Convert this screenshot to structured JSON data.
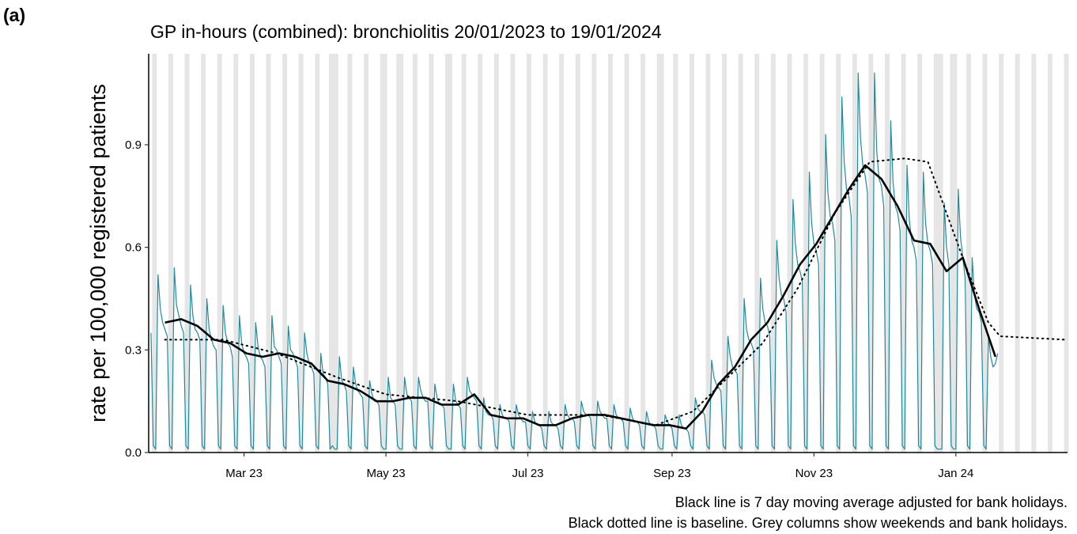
{
  "panel_label": "(a)",
  "chart_data": {
    "type": "line",
    "title": "GP in-hours (combined): bronchiolitis 20/01/2023 to 19/01/2024",
    "y_label": "rate per 100,000 registered patients",
    "notes": [
      "Black line is 7 day moving average adjusted for bank holidays.",
      "Black dotted line is baseline. Grey columns show weekends and bank holidays."
    ],
    "xlim": [
      "2023-01-19",
      "2024-02-18"
    ],
    "xticks": [
      {
        "value": "2023-03-01",
        "label": "Mar 23"
      },
      {
        "value": "2023-05-01",
        "label": "May 23"
      },
      {
        "value": "2023-07-01",
        "label": "Jul 23"
      },
      {
        "value": "2023-09-01",
        "label": "Sep 23"
      },
      {
        "value": "2023-11-01",
        "label": "Nov 23"
      },
      {
        "value": "2024-01-01",
        "label": "Jan 24"
      }
    ],
    "ylim": [
      0,
      1.166
    ],
    "yticks": [
      {
        "value": 0,
        "label": "0.0"
      },
      0.3,
      0.6,
      0.9
    ],
    "shade_weekends": true,
    "shade_color": "#e5e5e5",
    "bank_holidays": [
      "2023-04-07",
      "2023-04-10",
      "2023-05-01",
      "2023-05-08",
      "2023-05-29",
      "2023-08-28",
      "2023-12-25",
      "2023-12-26",
      "2024-01-01"
    ],
    "series": [
      {
        "style": "solid",
        "color": "#1f8a9e",
        "width": 1.2,
        "x": [
          "2023-01-20",
          "2023-01-21",
          "2023-01-22",
          "2023-01-23",
          "2023-01-24",
          "2023-01-25",
          "2023-01-26",
          "2023-01-27",
          "2023-01-28",
          "2023-01-29",
          "2023-01-30",
          "2023-01-31",
          "2023-02-01",
          "2023-02-02",
          "2023-02-03",
          "2023-02-04",
          "2023-02-05",
          "2023-02-06",
          "2023-02-07",
          "2023-02-08",
          "2023-02-09",
          "2023-02-10",
          "2023-02-11",
          "2023-02-12",
          "2023-02-13",
          "2023-02-14",
          "2023-02-15",
          "2023-02-16",
          "2023-02-17",
          "2023-02-18",
          "2023-02-19",
          "2023-02-20",
          "2023-02-21",
          "2023-02-22",
          "2023-02-23",
          "2023-02-24",
          "2023-02-25",
          "2023-02-26",
          "2023-02-27",
          "2023-02-28",
          "2023-03-01",
          "2023-03-02",
          "2023-03-03",
          "2023-03-04",
          "2023-03-05",
          "2023-03-06",
          "2023-03-07",
          "2023-03-08",
          "2023-03-09",
          "2023-03-10",
          "2023-03-11",
          "2023-03-12",
          "2023-03-13",
          "2023-03-14",
          "2023-03-15",
          "2023-03-16",
          "2023-03-17",
          "2023-03-18",
          "2023-03-19",
          "2023-03-20",
          "2023-03-21",
          "2023-03-22",
          "2023-03-23",
          "2023-03-24",
          "2023-03-25",
          "2023-03-26",
          "2023-03-27",
          "2023-03-28",
          "2023-03-29",
          "2023-03-30",
          "2023-03-31",
          "2023-04-01",
          "2023-04-02",
          "2023-04-03",
          "2023-04-04",
          "2023-04-05",
          "2023-04-06",
          "2023-04-07",
          "2023-04-08",
          "2023-04-09",
          "2023-04-10",
          "2023-04-11",
          "2023-04-12",
          "2023-04-13",
          "2023-04-14",
          "2023-04-15",
          "2023-04-16",
          "2023-04-17",
          "2023-04-18",
          "2023-04-19",
          "2023-04-20",
          "2023-04-21",
          "2023-04-22",
          "2023-04-23",
          "2023-04-24",
          "2023-04-25",
          "2023-04-26",
          "2023-04-27",
          "2023-04-28",
          "2023-04-29",
          "2023-04-30",
          "2023-05-01",
          "2023-05-02",
          "2023-05-03",
          "2023-05-04",
          "2023-05-05",
          "2023-05-06",
          "2023-05-07",
          "2023-05-08",
          "2023-05-09",
          "2023-05-10",
          "2023-05-11",
          "2023-05-12",
          "2023-05-13",
          "2023-05-14",
          "2023-05-15",
          "2023-05-16",
          "2023-05-17",
          "2023-05-18",
          "2023-05-19",
          "2023-05-20",
          "2023-05-21",
          "2023-05-22",
          "2023-05-23",
          "2023-05-24",
          "2023-05-25",
          "2023-05-26",
          "2023-05-27",
          "2023-05-28",
          "2023-05-29",
          "2023-05-30",
          "2023-05-31",
          "2023-06-01",
          "2023-06-02",
          "2023-06-03",
          "2023-06-04",
          "2023-06-05",
          "2023-06-06",
          "2023-06-07",
          "2023-06-08",
          "2023-06-09",
          "2023-06-10",
          "2023-06-11",
          "2023-06-12",
          "2023-06-13",
          "2023-06-14",
          "2023-06-15",
          "2023-06-16",
          "2023-06-17",
          "2023-06-18",
          "2023-06-19",
          "2023-06-20",
          "2023-06-21",
          "2023-06-22",
          "2023-06-23",
          "2023-06-24",
          "2023-06-25",
          "2023-06-26",
          "2023-06-27",
          "2023-06-28",
          "2023-06-29",
          "2023-06-30",
          "2023-07-01",
          "2023-07-02",
          "2023-07-03",
          "2023-07-04",
          "2023-07-05",
          "2023-07-06",
          "2023-07-07",
          "2023-07-08",
          "2023-07-09",
          "2023-07-10",
          "2023-07-11",
          "2023-07-12",
          "2023-07-13",
          "2023-07-14",
          "2023-07-15",
          "2023-07-16",
          "2023-07-17",
          "2023-07-18",
          "2023-07-19",
          "2023-07-20",
          "2023-07-21",
          "2023-07-22",
          "2023-07-23",
          "2023-07-24",
          "2023-07-25",
          "2023-07-26",
          "2023-07-27",
          "2023-07-28",
          "2023-07-29",
          "2023-07-30",
          "2023-07-31",
          "2023-08-01",
          "2023-08-02",
          "2023-08-03",
          "2023-08-04",
          "2023-08-05",
          "2023-08-06",
          "2023-08-07",
          "2023-08-08",
          "2023-08-09",
          "2023-08-10",
          "2023-08-11",
          "2023-08-12",
          "2023-08-13",
          "2023-08-14",
          "2023-08-15",
          "2023-08-16",
          "2023-08-17",
          "2023-08-18",
          "2023-08-19",
          "2023-08-20",
          "2023-08-21",
          "2023-08-22",
          "2023-08-23",
          "2023-08-24",
          "2023-08-25",
          "2023-08-26",
          "2023-08-27",
          "2023-08-28",
          "2023-08-29",
          "2023-08-30",
          "2023-08-31",
          "2023-09-01",
          "2023-09-02",
          "2023-09-03",
          "2023-09-04",
          "2023-09-05",
          "2023-09-06",
          "2023-09-07",
          "2023-09-08",
          "2023-09-09",
          "2023-09-10",
          "2023-09-11",
          "2023-09-12",
          "2023-09-13",
          "2023-09-14",
          "2023-09-15",
          "2023-09-16",
          "2023-09-17",
          "2023-09-18",
          "2023-09-19",
          "2023-09-20",
          "2023-09-21",
          "2023-09-22",
          "2023-09-23",
          "2023-09-24",
          "2023-09-25",
          "2023-09-26",
          "2023-09-27",
          "2023-09-28",
          "2023-09-29",
          "2023-09-30",
          "2023-10-01",
          "2023-10-02",
          "2023-10-03",
          "2023-10-04",
          "2023-10-05",
          "2023-10-06",
          "2023-10-07",
          "2023-10-08",
          "2023-10-09",
          "2023-10-10",
          "2023-10-11",
          "2023-10-12",
          "2023-10-13",
          "2023-10-14",
          "2023-10-15",
          "2023-10-16",
          "2023-10-17",
          "2023-10-18",
          "2023-10-19",
          "2023-10-20",
          "2023-10-21",
          "2023-10-22",
          "2023-10-23",
          "2023-10-24",
          "2023-10-25",
          "2023-10-26",
          "2023-10-27",
          "2023-10-28",
          "2023-10-29",
          "2023-10-30",
          "2023-10-31",
          "2023-11-01",
          "2023-11-02",
          "2023-11-03",
          "2023-11-04",
          "2023-11-05",
          "2023-11-06",
          "2023-11-07",
          "2023-11-08",
          "2023-11-09",
          "2023-11-10",
          "2023-11-11",
          "2023-11-12",
          "2023-11-13",
          "2023-11-14",
          "2023-11-15",
          "2023-11-16",
          "2023-11-17",
          "2023-11-18",
          "2023-11-19",
          "2023-11-20",
          "2023-11-21",
          "2023-11-22",
          "2023-11-23",
          "2023-11-24",
          "2023-11-25",
          "2023-11-26",
          "2023-11-27",
          "2023-11-28",
          "2023-11-29",
          "2023-11-30",
          "2023-12-01",
          "2023-12-02",
          "2023-12-03",
          "2023-12-04",
          "2023-12-05",
          "2023-12-06",
          "2023-12-07",
          "2023-12-08",
          "2023-12-09",
          "2023-12-10",
          "2023-12-11",
          "2023-12-12",
          "2023-12-13",
          "2023-12-14",
          "2023-12-15",
          "2023-12-16",
          "2023-12-17",
          "2023-12-18",
          "2023-12-19",
          "2023-12-20",
          "2023-12-21",
          "2023-12-22",
          "2023-12-23",
          "2023-12-24",
          "2023-12-25",
          "2023-12-26",
          "2023-12-27",
          "2023-12-28",
          "2023-12-29",
          "2023-12-30",
          "2023-12-31",
          "2024-01-01",
          "2024-01-02",
          "2024-01-03",
          "2024-01-04",
          "2024-01-05",
          "2024-01-06",
          "2024-01-07",
          "2024-01-08",
          "2024-01-09",
          "2024-01-10",
          "2024-01-11",
          "2024-01-12",
          "2024-01-13",
          "2024-01-14",
          "2024-01-15",
          "2024-01-16",
          "2024-01-17",
          "2024-01-18",
          "2024-01-19"
        ],
        "values": [
          0.35,
          0.02,
          0.01,
          0.52,
          0.42,
          0.38,
          0.36,
          0.34,
          0.02,
          0.01,
          0.54,
          0.43,
          0.4,
          0.37,
          0.35,
          0.02,
          0.01,
          0.49,
          0.4,
          0.36,
          0.35,
          0.33,
          0.02,
          0.01,
          0.45,
          0.36,
          0.33,
          0.31,
          0.3,
          0.02,
          0.01,
          0.43,
          0.35,
          0.32,
          0.31,
          0.28,
          0.02,
          0.01,
          0.4,
          0.32,
          0.29,
          0.28,
          0.26,
          0.02,
          0.01,
          0.38,
          0.31,
          0.28,
          0.27,
          0.25,
          0.02,
          0.01,
          0.4,
          0.31,
          0.3,
          0.28,
          0.26,
          0.02,
          0.01,
          0.37,
          0.3,
          0.29,
          0.27,
          0.25,
          0.02,
          0.01,
          0.35,
          0.29,
          0.26,
          0.25,
          0.23,
          0.02,
          0.01,
          0.29,
          0.23,
          0.22,
          0.2,
          0.01,
          0.02,
          0.01,
          0.01,
          0.28,
          0.21,
          0.2,
          0.18,
          0.02,
          0.01,
          0.25,
          0.2,
          0.18,
          0.17,
          0.16,
          0.02,
          0.01,
          0.21,
          0.17,
          0.15,
          0.15,
          0.14,
          0.02,
          0.01,
          0.01,
          0.22,
          0.16,
          0.15,
          0.14,
          0.02,
          0.01,
          0.01,
          0.22,
          0.17,
          0.16,
          0.15,
          0.02,
          0.01,
          0.22,
          0.18,
          0.16,
          0.15,
          0.15,
          0.02,
          0.01,
          0.2,
          0.16,
          0.14,
          0.14,
          0.13,
          0.02,
          0.01,
          0.01,
          0.2,
          0.15,
          0.14,
          0.13,
          0.02,
          0.01,
          0.22,
          0.18,
          0.17,
          0.16,
          0.15,
          0.02,
          0.01,
          0.16,
          0.12,
          0.11,
          0.11,
          0.1,
          0.02,
          0.01,
          0.14,
          0.11,
          0.1,
          0.1,
          0.09,
          0.02,
          0.01,
          0.14,
          0.11,
          0.1,
          0.09,
          0.09,
          0.02,
          0.01,
          0.12,
          0.09,
          0.08,
          0.08,
          0.07,
          0.02,
          0.01,
          0.12,
          0.09,
          0.08,
          0.08,
          0.07,
          0.02,
          0.01,
          0.14,
          0.11,
          0.1,
          0.1,
          0.09,
          0.02,
          0.01,
          0.15,
          0.12,
          0.11,
          0.11,
          0.1,
          0.02,
          0.01,
          0.15,
          0.12,
          0.11,
          0.1,
          0.1,
          0.02,
          0.01,
          0.14,
          0.11,
          0.1,
          0.1,
          0.09,
          0.02,
          0.01,
          0.13,
          0.1,
          0.09,
          0.09,
          0.08,
          0.02,
          0.01,
          0.12,
          0.09,
          0.08,
          0.08,
          0.07,
          0.02,
          0.01,
          0.01,
          0.11,
          0.09,
          0.08,
          0.07,
          0.02,
          0.01,
          0.11,
          0.08,
          0.07,
          0.07,
          0.06,
          0.02,
          0.01,
          0.16,
          0.13,
          0.12,
          0.12,
          0.11,
          0.02,
          0.01,
          0.27,
          0.22,
          0.2,
          0.19,
          0.18,
          0.02,
          0.01,
          0.34,
          0.28,
          0.25,
          0.24,
          0.23,
          0.02,
          0.01,
          0.45,
          0.36,
          0.33,
          0.32,
          0.3,
          0.02,
          0.01,
          0.51,
          0.42,
          0.38,
          0.37,
          0.34,
          0.02,
          0.01,
          0.62,
          0.51,
          0.46,
          0.45,
          0.41,
          0.02,
          0.01,
          0.74,
          0.61,
          0.55,
          0.53,
          0.5,
          0.02,
          0.01,
          0.82,
          0.67,
          0.61,
          0.59,
          0.55,
          0.02,
          0.01,
          0.93,
          0.76,
          0.69,
          0.67,
          0.62,
          0.02,
          0.01,
          1.04,
          0.85,
          0.77,
          0.75,
          0.69,
          0.02,
          0.01,
          1.11,
          0.92,
          0.84,
          0.81,
          0.76,
          0.02,
          0.01,
          1.11,
          0.88,
          0.8,
          0.78,
          0.72,
          0.02,
          0.01,
          0.97,
          0.79,
          0.72,
          0.7,
          0.65,
          0.02,
          0.01,
          0.84,
          0.68,
          0.62,
          0.6,
          0.56,
          0.02,
          0.01,
          0.82,
          0.67,
          0.61,
          0.59,
          0.55,
          0.02,
          0.01,
          0.01,
          0.01,
          0.73,
          0.6,
          0.55,
          0.02,
          0.01,
          0.01,
          0.77,
          0.63,
          0.57,
          0.51,
          0.02,
          0.01,
          0.57,
          0.46,
          0.42,
          0.41,
          0.38,
          0.02,
          0.01,
          0.34,
          0.28,
          0.25,
          0.26,
          0.29
        ]
      },
      {
        "style": "solid",
        "color": "#000000",
        "width": 2.6,
        "x": [
          "2023-01-26",
          "2023-02-02",
          "2023-02-09",
          "2023-02-16",
          "2023-02-23",
          "2023-03-02",
          "2023-03-09",
          "2023-03-16",
          "2023-03-23",
          "2023-03-30",
          "2023-04-06",
          "2023-04-13",
          "2023-04-20",
          "2023-04-27",
          "2023-05-04",
          "2023-05-11",
          "2023-05-18",
          "2023-05-25",
          "2023-06-01",
          "2023-06-08",
          "2023-06-15",
          "2023-06-22",
          "2023-06-29",
          "2023-07-06",
          "2023-07-13",
          "2023-07-20",
          "2023-07-27",
          "2023-08-03",
          "2023-08-10",
          "2023-08-17",
          "2023-08-24",
          "2023-08-31",
          "2023-09-07",
          "2023-09-14",
          "2023-09-21",
          "2023-09-28",
          "2023-10-05",
          "2023-10-12",
          "2023-10-19",
          "2023-10-26",
          "2023-11-02",
          "2023-11-09",
          "2023-11-16",
          "2023-11-23",
          "2023-11-30",
          "2023-12-07",
          "2023-12-14",
          "2023-12-21",
          "2023-12-28",
          "2024-01-04",
          "2024-01-11",
          "2024-01-18"
        ],
        "values": [
          0.38,
          0.39,
          0.37,
          0.33,
          0.32,
          0.29,
          0.28,
          0.29,
          0.28,
          0.26,
          0.21,
          0.2,
          0.18,
          0.15,
          0.15,
          0.16,
          0.16,
          0.14,
          0.14,
          0.17,
          0.11,
          0.1,
          0.1,
          0.08,
          0.08,
          0.1,
          0.11,
          0.11,
          0.1,
          0.09,
          0.08,
          0.08,
          0.07,
          0.12,
          0.2,
          0.25,
          0.33,
          0.38,
          0.46,
          0.55,
          0.61,
          0.69,
          0.77,
          0.84,
          0.8,
          0.72,
          0.62,
          0.61,
          0.53,
          0.57,
          0.42,
          0.28
        ]
      },
      {
        "style": "dotted",
        "color": "#000000",
        "width": 2,
        "x": [
          "2023-01-26",
          "2023-02-20",
          "2023-03-15",
          "2023-04-10",
          "2023-05-01",
          "2023-06-01",
          "2023-07-01",
          "2023-08-01",
          "2023-08-25",
          "2023-09-10",
          "2023-09-25",
          "2023-10-10",
          "2023-10-25",
          "2023-11-10",
          "2023-11-25",
          "2023-12-10",
          "2023-12-20",
          "2023-12-28",
          "2024-01-05",
          "2024-01-15",
          "2024-01-20",
          "2024-02-17"
        ],
        "values": [
          0.33,
          0.33,
          0.29,
          0.22,
          0.17,
          0.15,
          0.11,
          0.11,
          0.08,
          0.12,
          0.22,
          0.32,
          0.48,
          0.7,
          0.85,
          0.86,
          0.85,
          0.7,
          0.55,
          0.38,
          0.34,
          0.33
        ]
      }
    ]
  }
}
